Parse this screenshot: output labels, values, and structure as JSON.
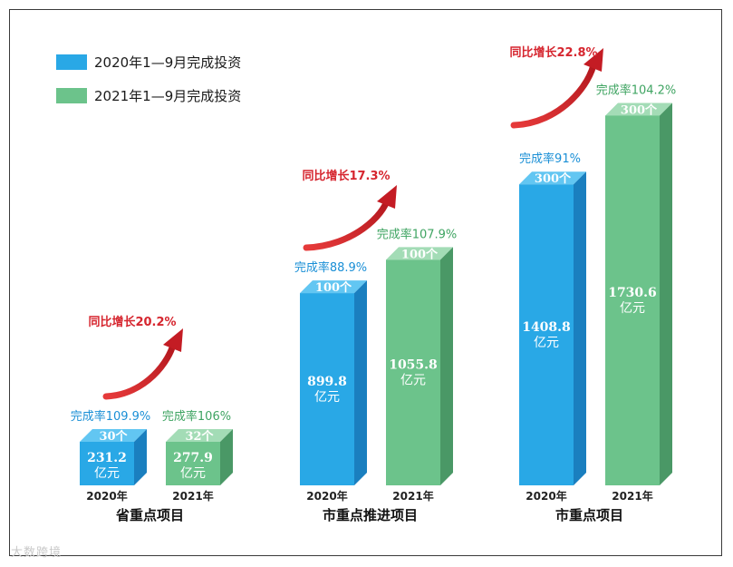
{
  "legend": [
    {
      "label": "2020年1—9月完成投资",
      "color": "#29a8e6"
    },
    {
      "label": "2021年1—9月完成投资",
      "color": "#6cc38b"
    }
  ],
  "watermark": "大数跨境",
  "colors": {
    "blue_front": "#29a8e6",
    "blue_top": "#62c6f2",
    "blue_side": "#1a7fbf",
    "green_front": "#6cc38b",
    "green_top": "#a3dcb6",
    "green_side": "#4a9866",
    "blue_text": "#1a8fd6",
    "green_text": "#3fa462",
    "red": "#d6262f"
  },
  "chart_data": {
    "type": "bar",
    "unit": "亿元",
    "categories": [
      "省重点项目",
      "市重点推进项目",
      "市重点项目"
    ],
    "years": [
      "2020年",
      "2021年"
    ],
    "series": [
      {
        "name": "2020年1—9月完成投资",
        "values": [
          231.2,
          899.8,
          1408.8
        ],
        "value_labels": [
          "231.2",
          "899.8",
          "1408.8"
        ],
        "counts": [
          "30个",
          "100个",
          "300个"
        ],
        "rates": [
          "完成率109.9%",
          "完成率88.9%",
          "完成率91%"
        ]
      },
      {
        "name": "2021年1—9月完成投资",
        "values": [
          277.9,
          1055.8,
          1730.6
        ],
        "value_labels": [
          "277.9",
          "1055.8",
          "1730.6"
        ],
        "counts": [
          "32个",
          "100个",
          "300个"
        ],
        "rates": [
          "完成率106%",
          "完成率107.9%",
          "完成率104.2%"
        ]
      }
    ],
    "growth": [
      "同比增长20.2%",
      "同比增长17.3%",
      "同比增长22.8%"
    ]
  }
}
